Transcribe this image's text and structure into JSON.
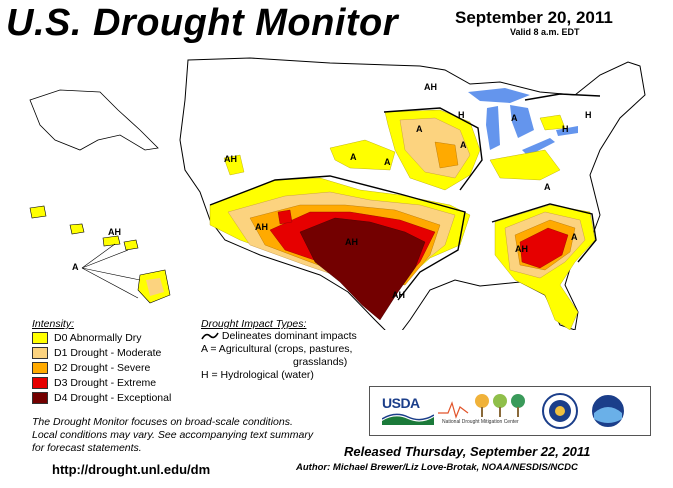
{
  "header": {
    "title": "U.S. Drought Monitor",
    "date": "September 20, 2011",
    "valid": "Valid 8 a.m. EDT"
  },
  "map_labels": {
    "ah": "AH",
    "a": "A",
    "h": "H"
  },
  "legend": {
    "heading": "Intensity:",
    "items": [
      {
        "label": "D0 Abnormally Dry",
        "color": "#ffff00"
      },
      {
        "label": "D1 Drought - Moderate",
        "color": "#fcd37f"
      },
      {
        "label": "D2 Drought - Severe",
        "color": "#ffaa00"
      },
      {
        "label": "D3 Drought - Extreme",
        "color": "#e60000"
      },
      {
        "label": "D4 Drought - Exceptional",
        "color": "#730000"
      }
    ]
  },
  "impacts": {
    "heading": "Drought Impact Types:",
    "delineates": "Delineates dominant impacts",
    "agricultural_1": "A = Agricultural (crops, pastures,",
    "agricultural_2": "grasslands)",
    "hydrological": "H = Hydrological (water)"
  },
  "notes": {
    "line1": "The Drought Monitor focuses on broad-scale conditions.",
    "line2": "Local conditions may vary. See accompanying text summary",
    "line3": "for forecast statements."
  },
  "footer": {
    "url": "http://drought.unl.edu/dm",
    "released": "Released Thursday, September 22, 2011",
    "author": "Author: Michael Brewer/Liz Love-Brotak, NOAA/NESDIS/NCDC"
  },
  "logos": {
    "usda": "USDA",
    "ndmc": "National Drought Mitigation Center"
  }
}
